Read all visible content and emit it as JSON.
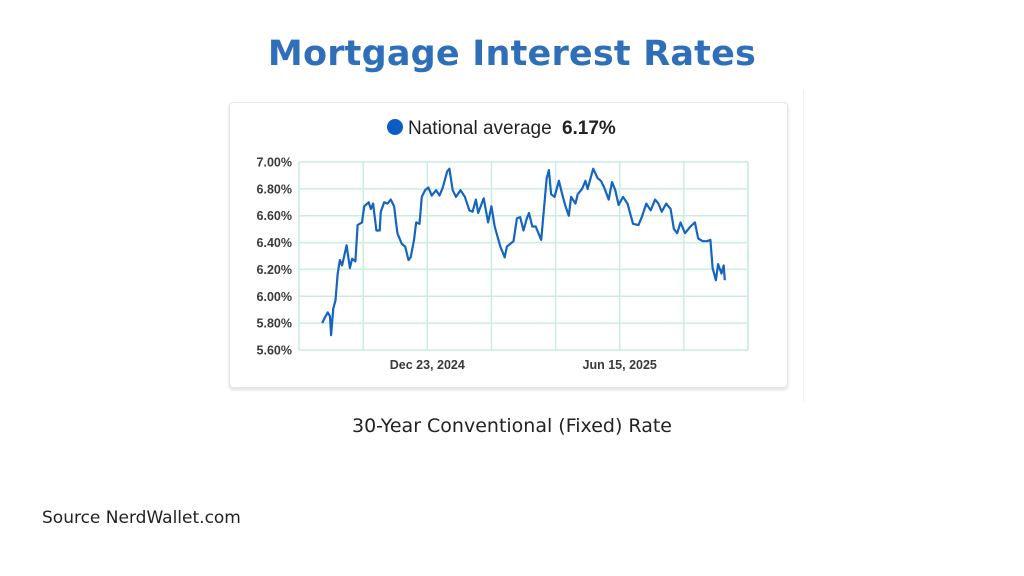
{
  "title": "Mortgage Interest Rates",
  "subtitle": "30-Year Conventional (Fixed) Rate",
  "source": "Source NerdWallet.com",
  "colors": {
    "title": "#2f6fba",
    "line": "#1565c0",
    "grid": "#c8eee0",
    "legend_dot": "#0b5cc4"
  },
  "chart_data": {
    "type": "line",
    "legend": {
      "label": "National average",
      "value": "6.17%",
      "position": "top-center"
    },
    "x_unit": "days relative to Dec 23, 2024",
    "xlim": [
      -116,
      290
    ],
    "x_ticks": [
      {
        "x": 0,
        "label": "Dec 23, 2024"
      },
      {
        "x": 174,
        "label": "Jun 15, 2025"
      }
    ],
    "x_grid_step": 58,
    "ylim": [
      5.6,
      7.0
    ],
    "y_ticks": [
      {
        "v": 7.0,
        "label": "7.00%"
      },
      {
        "v": 6.8,
        "label": "6.80%"
      },
      {
        "v": 6.6,
        "label": "6.60%"
      },
      {
        "v": 6.4,
        "label": "6.40%"
      },
      {
        "v": 6.2,
        "label": "6.20%"
      },
      {
        "v": 6.0,
        "label": "6.00%"
      },
      {
        "v": 5.8,
        "label": "5.80%"
      },
      {
        "v": 5.6,
        "label": "5.60%"
      }
    ],
    "grid": true,
    "series": [
      {
        "name": "National average",
        "x": [
          -95,
          -92,
          -90,
          -88,
          -87,
          -85,
          -83,
          -81,
          -79,
          -77,
          -73,
          -70,
          -68,
          -65,
          -63,
          -59,
          -57,
          -53,
          -51,
          -49,
          -46,
          -43,
          -42,
          -39,
          -36,
          -33,
          -30,
          -27,
          -23,
          -20,
          -17,
          -15,
          -12,
          -10,
          -7,
          -5,
          -2,
          1,
          4,
          8,
          11,
          14,
          18,
          20,
          23,
          26,
          30,
          34,
          38,
          41,
          44,
          46,
          51,
          55,
          58,
          61,
          66,
          70,
          72,
          75,
          78,
          81,
          84,
          87,
          90,
          92,
          95,
          98,
          103,
          108,
          110,
          112,
          115,
          119,
          122,
          125,
          128,
          130,
          134,
          136,
          140,
          143,
          145,
          150,
          154,
          157,
          160,
          164,
          167,
          170,
          173,
          177,
          181,
          186,
          191,
          194,
          198,
          202,
          206,
          209,
          212,
          216,
          220,
          223,
          226,
          229,
          233,
          238,
          242,
          245,
          249,
          253,
          256,
          258,
          261,
          263,
          266,
          268,
          269
        ],
        "values": [
          5.8,
          5.85,
          5.88,
          5.85,
          5.71,
          5.91,
          5.97,
          6.17,
          6.27,
          6.23,
          6.38,
          6.21,
          6.28,
          6.26,
          6.53,
          6.55,
          6.67,
          6.7,
          6.65,
          6.69,
          6.49,
          6.49,
          6.63,
          6.7,
          6.69,
          6.72,
          6.67,
          6.47,
          6.39,
          6.37,
          6.27,
          6.29,
          6.42,
          6.55,
          6.54,
          6.74,
          6.79,
          6.81,
          6.75,
          6.79,
          6.75,
          6.81,
          6.93,
          6.95,
          6.79,
          6.74,
          6.79,
          6.74,
          6.64,
          6.63,
          6.72,
          6.62,
          6.73,
          6.55,
          6.67,
          6.52,
          6.37,
          6.29,
          6.37,
          6.39,
          6.41,
          6.58,
          6.59,
          6.49,
          6.58,
          6.62,
          6.52,
          6.52,
          6.42,
          6.88,
          6.94,
          6.76,
          6.74,
          6.86,
          6.76,
          6.67,
          6.6,
          6.74,
          6.69,
          6.76,
          6.8,
          6.86,
          6.8,
          6.95,
          6.88,
          6.86,
          6.81,
          6.72,
          6.85,
          6.79,
          6.68,
          6.74,
          6.69,
          6.54,
          6.53,
          6.59,
          6.69,
          6.64,
          6.72,
          6.69,
          6.63,
          6.69,
          6.65,
          6.5,
          6.47,
          6.55,
          6.47,
          6.52,
          6.55,
          6.43,
          6.41,
          6.41,
          6.42,
          6.21,
          6.12,
          6.24,
          6.17,
          6.23,
          6.12
        ]
      }
    ]
  }
}
